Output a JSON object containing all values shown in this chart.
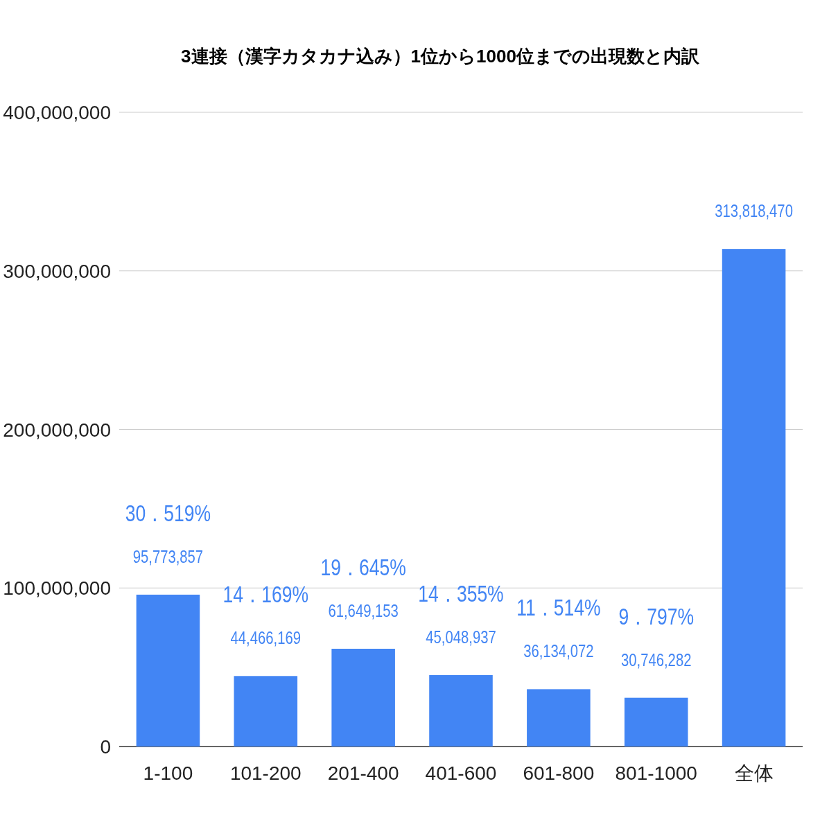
{
  "chart_data": {
    "type": "bar",
    "title": "3連接（漢字カタカナ込み）1位から1000位までの出現数と内訳",
    "categories": [
      "1-100",
      "101-200",
      "201-400",
      "401-600",
      "601-800",
      "801-1000",
      "全体"
    ],
    "series": [
      {
        "color": "#4285f4",
        "values": [
          95773857,
          44466169,
          61649153,
          45048937,
          36134072,
          30746282,
          313818470
        ],
        "value_labels": [
          "95,773,857",
          "44,466,169",
          "61,649,153",
          "45,048,937",
          "36,134,072",
          "30,746,282",
          "313,818,470"
        ]
      }
    ],
    "ylim": [
      0,
      400000000
    ],
    "yticks": [
      {
        "value": 0,
        "label": "0"
      },
      {
        "value": 100000000,
        "label": "100,000,000"
      },
      {
        "value": 200000000,
        "label": "200,000,000"
      },
      {
        "value": 300000000,
        "label": "300,000,000"
      },
      {
        "value": 400000000,
        "label": "400,000,000"
      }
    ],
    "grid": "y",
    "annotations": [
      {
        "text": "30．519%",
        "x": "1-100",
        "y": 95773857
      },
      {
        "text": "14．169%",
        "x": "101-200",
        "y": 44466169
      },
      {
        "text": "19．645%",
        "x": "201-400",
        "y": 61649153
      },
      {
        "text": "14．355%",
        "x": "401-600",
        "y": 45048937
      },
      {
        "text": "11．514%",
        "x": "601-800",
        "y": 36134072
      },
      {
        "text": "9．797%",
        "x": "801-1000",
        "y": 30746282
      }
    ]
  }
}
